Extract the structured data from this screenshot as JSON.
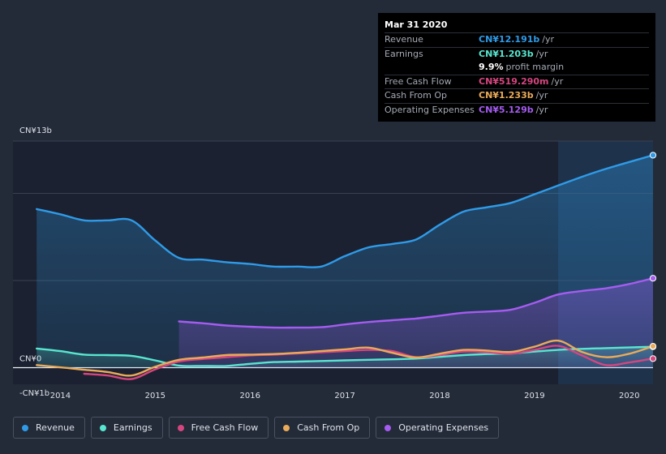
{
  "colors": {
    "background": "#232a38",
    "revenue": "#2f9be8",
    "earnings": "#58e6cf",
    "free_cash_flow": "#d5467f",
    "cash_from_op": "#e9ab5a",
    "operating_expenses": "#a55cf0"
  },
  "tooltip": {
    "date": "Mar 31 2020",
    "rows": [
      {
        "label": "Revenue",
        "value": "CN¥12.191b",
        "unit": "/yr",
        "color": "#2f9be8"
      },
      {
        "label": "Earnings",
        "value": "CN¥1.203b",
        "unit": "/yr",
        "color": "#58e6cf"
      },
      {
        "label": "",
        "value": "9.9%",
        "unit": "profit margin",
        "color": "#ffffff"
      },
      {
        "label": "Free Cash Flow",
        "value": "CN¥519.290m",
        "unit": "/yr",
        "color": "#d5467f"
      },
      {
        "label": "Cash From Op",
        "value": "CN¥1.233b",
        "unit": "/yr",
        "color": "#e9ab5a"
      },
      {
        "label": "Operating Expenses",
        "value": "CN¥5.129b",
        "unit": "/yr",
        "color": "#a55cf0"
      }
    ]
  },
  "legend": [
    {
      "label": "Revenue",
      "color": "#2f9be8"
    },
    {
      "label": "Earnings",
      "color": "#58e6cf"
    },
    {
      "label": "Free Cash Flow",
      "color": "#d5467f"
    },
    {
      "label": "Cash From Op",
      "color": "#e9ab5a"
    },
    {
      "label": "Operating Expenses",
      "color": "#a55cf0"
    }
  ],
  "chart_data": {
    "type": "area",
    "ylim": [
      -1,
      13
    ],
    "y_tick_labels": [
      {
        "value": 13,
        "label": "CN¥13b"
      },
      {
        "value": 0,
        "label": "CN¥0"
      },
      {
        "value": -1,
        "label": "-CN¥1b"
      }
    ],
    "xlim": [
      2013.5,
      2020.25
    ],
    "x_ticks": [
      2014,
      2015,
      2016,
      2017,
      2018,
      2019,
      2020
    ],
    "x_tick_labels": [
      "2014",
      "2015",
      "2016",
      "2017",
      "2018",
      "2019",
      "2020"
    ],
    "highlight_from": 2019.25,
    "grid": true,
    "legend_position": "bottom",
    "series": [
      {
        "name": "Revenue",
        "key": "revenue",
        "fill": true,
        "points": [
          [
            2013.75,
            9.1
          ],
          [
            2014.0,
            8.8
          ],
          [
            2014.25,
            8.45
          ],
          [
            2014.5,
            8.45
          ],
          [
            2014.75,
            8.45
          ],
          [
            2015.0,
            7.3
          ],
          [
            2015.25,
            6.3
          ],
          [
            2015.5,
            6.2
          ],
          [
            2015.75,
            6.05
          ],
          [
            2016.0,
            5.95
          ],
          [
            2016.25,
            5.8
          ],
          [
            2016.5,
            5.8
          ],
          [
            2016.75,
            5.8
          ],
          [
            2017.0,
            6.4
          ],
          [
            2017.25,
            6.9
          ],
          [
            2017.5,
            7.1
          ],
          [
            2017.75,
            7.35
          ],
          [
            2018.0,
            8.2
          ],
          [
            2018.25,
            8.95
          ],
          [
            2018.5,
            9.2
          ],
          [
            2018.75,
            9.45
          ],
          [
            2019.0,
            9.95
          ],
          [
            2019.25,
            10.45
          ],
          [
            2019.5,
            10.95
          ],
          [
            2019.75,
            11.4
          ],
          [
            2020.0,
            11.8
          ],
          [
            2020.25,
            12.19
          ]
        ]
      },
      {
        "name": "Operating Expenses",
        "key": "operating_expenses",
        "fill": true,
        "points": [
          [
            2015.25,
            2.65
          ],
          [
            2015.5,
            2.55
          ],
          [
            2015.75,
            2.42
          ],
          [
            2016.0,
            2.35
          ],
          [
            2016.25,
            2.3
          ],
          [
            2016.5,
            2.3
          ],
          [
            2016.75,
            2.32
          ],
          [
            2017.0,
            2.48
          ],
          [
            2017.25,
            2.62
          ],
          [
            2017.5,
            2.72
          ],
          [
            2017.75,
            2.82
          ],
          [
            2018.0,
            2.98
          ],
          [
            2018.25,
            3.15
          ],
          [
            2018.5,
            3.22
          ],
          [
            2018.75,
            3.32
          ],
          [
            2019.0,
            3.72
          ],
          [
            2019.25,
            4.2
          ],
          [
            2019.5,
            4.4
          ],
          [
            2019.75,
            4.55
          ],
          [
            2020.0,
            4.8
          ],
          [
            2020.25,
            5.13
          ]
        ]
      },
      {
        "name": "Earnings",
        "key": "earnings",
        "fill": true,
        "points": [
          [
            2013.75,
            1.1
          ],
          [
            2014.0,
            0.95
          ],
          [
            2014.25,
            0.75
          ],
          [
            2014.5,
            0.72
          ],
          [
            2014.75,
            0.68
          ],
          [
            2015.0,
            0.42
          ],
          [
            2015.25,
            0.12
          ],
          [
            2015.5,
            0.1
          ],
          [
            2015.75,
            0.1
          ],
          [
            2016.0,
            0.22
          ],
          [
            2016.25,
            0.32
          ],
          [
            2016.5,
            0.35
          ],
          [
            2016.75,
            0.38
          ],
          [
            2017.0,
            0.42
          ],
          [
            2017.25,
            0.45
          ],
          [
            2017.5,
            0.48
          ],
          [
            2017.75,
            0.52
          ],
          [
            2018.0,
            0.62
          ],
          [
            2018.25,
            0.72
          ],
          [
            2018.5,
            0.78
          ],
          [
            2018.75,
            0.82
          ],
          [
            2019.0,
            0.92
          ],
          [
            2019.25,
            1.02
          ],
          [
            2019.5,
            1.08
          ],
          [
            2019.75,
            1.12
          ],
          [
            2020.0,
            1.16
          ],
          [
            2020.25,
            1.2
          ]
        ]
      },
      {
        "name": "Free Cash Flow",
        "key": "free_cash_flow",
        "fill": false,
        "points": [
          [
            2014.25,
            -0.35
          ],
          [
            2014.5,
            -0.45
          ],
          [
            2014.75,
            -0.65
          ],
          [
            2015.0,
            -0.1
          ],
          [
            2015.25,
            0.35
          ],
          [
            2015.5,
            0.5
          ],
          [
            2015.75,
            0.6
          ],
          [
            2016.0,
            0.7
          ],
          [
            2016.25,
            0.75
          ],
          [
            2016.5,
            0.82
          ],
          [
            2016.75,
            0.88
          ],
          [
            2017.0,
            0.95
          ],
          [
            2017.25,
            1.02
          ],
          [
            2017.5,
            0.95
          ],
          [
            2017.75,
            0.6
          ],
          [
            2018.0,
            0.72
          ],
          [
            2018.25,
            0.92
          ],
          [
            2018.5,
            0.88
          ],
          [
            2018.75,
            0.8
          ],
          [
            2019.0,
            1.02
          ],
          [
            2019.25,
            1.25
          ],
          [
            2019.5,
            0.7
          ],
          [
            2019.75,
            0.15
          ],
          [
            2020.0,
            0.3
          ],
          [
            2020.25,
            0.52
          ]
        ]
      },
      {
        "name": "Cash From Op",
        "key": "cash_from_op",
        "fill": false,
        "points": [
          [
            2013.75,
            0.15
          ],
          [
            2014.0,
            0.02
          ],
          [
            2014.25,
            -0.12
          ],
          [
            2014.5,
            -0.25
          ],
          [
            2014.75,
            -0.45
          ],
          [
            2015.0,
            0.05
          ],
          [
            2015.25,
            0.45
          ],
          [
            2015.5,
            0.58
          ],
          [
            2015.75,
            0.72
          ],
          [
            2016.0,
            0.75
          ],
          [
            2016.25,
            0.78
          ],
          [
            2016.5,
            0.85
          ],
          [
            2016.75,
            0.95
          ],
          [
            2017.0,
            1.05
          ],
          [
            2017.25,
            1.15
          ],
          [
            2017.5,
            0.85
          ],
          [
            2017.75,
            0.58
          ],
          [
            2018.0,
            0.8
          ],
          [
            2018.25,
            1.02
          ],
          [
            2018.5,
            0.98
          ],
          [
            2018.75,
            0.9
          ],
          [
            2019.0,
            1.2
          ],
          [
            2019.25,
            1.55
          ],
          [
            2019.5,
            0.9
          ],
          [
            2019.75,
            0.6
          ],
          [
            2020.0,
            0.8
          ],
          [
            2020.25,
            1.23
          ]
        ]
      }
    ]
  }
}
